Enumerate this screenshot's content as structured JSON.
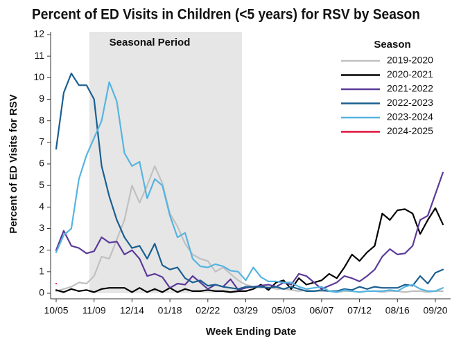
{
  "chart_data": {
    "type": "line",
    "title": "Percent of ED Visits in Children (<5 years) for RSV by Season",
    "x_label": "Week Ending Date",
    "y_label": "Percent of ED Visits for RSV",
    "annotation": "Seasonal Period",
    "legend_title": "Season",
    "legend": "top-right",
    "categories": [
      "10/05",
      null,
      null,
      null,
      null,
      "11/09",
      null,
      null,
      null,
      null,
      "12/14",
      null,
      null,
      null,
      null,
      "01/18",
      null,
      null,
      null,
      null,
      "02/22",
      null,
      null,
      null,
      null,
      "03/29",
      null,
      null,
      null,
      null,
      "05/03",
      null,
      null,
      null,
      null,
      "06/07",
      null,
      null,
      null,
      null,
      "07/12",
      null,
      null,
      null,
      null,
      "08/16",
      null,
      null,
      null,
      null,
      "09/20",
      null
    ],
    "ylim": [
      0,
      12
    ],
    "yticks": [
      0,
      1,
      2,
      3,
      4,
      5,
      6,
      7,
      8,
      9,
      10,
      11,
      12
    ],
    "series": [
      {
        "name": "2019-2020",
        "color": "#c0c0c0",
        "values": [
          0.1,
          0.2,
          0.3,
          0.5,
          0.45,
          0.8,
          1.7,
          1.6,
          2.5,
          3.4,
          5.0,
          4.2,
          5.0,
          5.9,
          5.1,
          3.7,
          3.1,
          2.3,
          1.8,
          1.6,
          1.5,
          1.0,
          1.2,
          0.9,
          0.6,
          0.4,
          0.3,
          0.25,
          0.3,
          0.2,
          0.2,
          0.15,
          0.1,
          0.15,
          0.1,
          0.1,
          0.1,
          0.05,
          0.1,
          0.1,
          0.05,
          0.1,
          0.1,
          0.05,
          0.1,
          0.1,
          0.05,
          0.1,
          0.1,
          0.05,
          0.1,
          0.1
        ]
      },
      {
        "name": "2020-2021",
        "color": "#000000",
        "values": [
          0.15,
          0.05,
          0.2,
          0.1,
          0.15,
          0.05,
          0.2,
          0.25,
          0.25,
          0.25,
          0.05,
          0.25,
          0.05,
          0.2,
          0.05,
          0.25,
          0.05,
          0.2,
          0.1,
          0.1,
          0.15,
          0.1,
          0.1,
          0.05,
          0.1,
          0.1,
          0.2,
          0.4,
          0.15,
          0.5,
          0.6,
          0.2,
          0.7,
          0.4,
          0.5,
          0.6,
          0.9,
          0.7,
          1.2,
          1.8,
          1.5,
          1.9,
          2.2,
          3.7,
          3.4,
          3.85,
          3.9,
          3.7,
          2.75,
          3.4,
          3.95,
          3.2
        ]
      },
      {
        "name": "2021-2022",
        "color": "#5b3a99",
        "values": [
          2.0,
          2.9,
          2.2,
          2.1,
          1.85,
          1.95,
          2.6,
          2.35,
          2.4,
          1.8,
          2.0,
          1.6,
          0.8,
          0.9,
          0.75,
          0.25,
          0.45,
          0.4,
          0.8,
          0.5,
          0.2,
          0.4,
          0.3,
          0.65,
          0.15,
          0.25,
          0.3,
          0.35,
          0.4,
          0.3,
          0.5,
          0.4,
          0.9,
          0.8,
          0.5,
          0.2,
          0.35,
          0.5,
          0.8,
          0.7,
          0.55,
          0.8,
          1.1,
          1.7,
          2.05,
          1.8,
          1.85,
          2.2,
          3.4,
          3.6,
          4.6,
          5.6
        ]
      },
      {
        "name": "2022-2023",
        "color": "#1a5f91",
        "values": [
          6.7,
          9.3,
          10.2,
          9.65,
          9.65,
          9.0,
          5.9,
          4.5,
          3.4,
          2.6,
          2.1,
          2.2,
          1.6,
          2.3,
          1.3,
          1.1,
          1.2,
          0.7,
          0.5,
          0.6,
          0.35,
          0.4,
          0.3,
          0.25,
          0.2,
          0.3,
          0.3,
          0.3,
          0.25,
          0.3,
          0.2,
          0.3,
          0.2,
          0.1,
          0.1,
          0.15,
          0.1,
          0.1,
          0.2,
          0.15,
          0.3,
          0.2,
          0.3,
          0.25,
          0.25,
          0.25,
          0.4,
          0.35,
          0.8,
          0.45,
          0.95,
          1.1
        ]
      },
      {
        "name": "2023-2024",
        "color": "#56b4e0",
        "values": [
          1.9,
          2.7,
          3.0,
          5.3,
          6.4,
          7.2,
          8.0,
          9.8,
          8.9,
          6.5,
          5.9,
          6.1,
          4.4,
          5.3,
          5.0,
          3.6,
          2.6,
          2.8,
          1.6,
          1.25,
          1.2,
          1.35,
          1.25,
          1.05,
          1.0,
          0.6,
          1.2,
          0.75,
          0.55,
          0.55,
          0.5,
          0.5,
          0.3,
          0.2,
          0.25,
          0.3,
          0.1,
          0.05,
          0.15,
          0.1,
          0.05,
          0.1,
          0.1,
          0.1,
          0.15,
          0.1,
          0.3,
          0.4,
          0.2,
          0.1,
          0.1,
          0.25
        ]
      },
      {
        "name": "2024-2025",
        "color": "#e0103a",
        "values": [
          0.45,
          null,
          null,
          null,
          null,
          null,
          null,
          null,
          null,
          null,
          null,
          null,
          null,
          null,
          null,
          null,
          null,
          null,
          null,
          null,
          null,
          null,
          null,
          null,
          null,
          null,
          null,
          null,
          null,
          null,
          null,
          null,
          null,
          null,
          null,
          null,
          null,
          null,
          null,
          null,
          null,
          null,
          null,
          null,
          null,
          null,
          null,
          null,
          null,
          null,
          null,
          null
        ]
      }
    ]
  }
}
